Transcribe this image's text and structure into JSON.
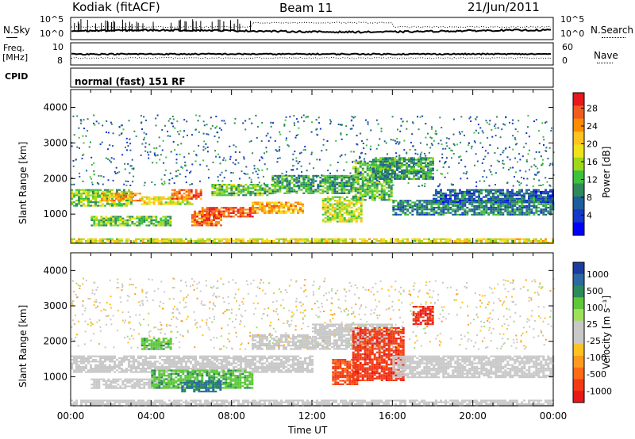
{
  "header": {
    "site": "Kodiak (fitACF)",
    "beam": "Beam 11",
    "date": "21/Jun/2011"
  },
  "strip_panels": {
    "nsky_label": "N.Sky",
    "nsearch_label": "N.Search",
    "freq_label_1": "Freq.",
    "freq_label_2": "[MHz]",
    "nave_label": "Nave",
    "cpid_label": "CPID",
    "cpid_text": "normal (fast) 151 RF",
    "noise_ticks": [
      "10^5",
      "10^0"
    ],
    "freq_ticks": [
      "10",
      "8"
    ],
    "nave_ticks": [
      "60",
      "0"
    ]
  },
  "chart_data": [
    {
      "type": "heatmap",
      "name": "Power",
      "ylabel": "Slant Range [km]",
      "yticks": [
        "4000",
        "3000",
        "2000",
        "1000"
      ],
      "ylim": [
        180,
        4500
      ],
      "xlim_hours": [
        0,
        24
      ],
      "colorbar_label": "Power [dB]",
      "colorbar_ticks": [
        "28",
        "24",
        "20",
        "16",
        "12",
        "8",
        "4"
      ],
      "colorbar_colors": [
        "#e8181c",
        "#f25a1e",
        "#ff8c00",
        "#ffc21e",
        "#f0e21a",
        "#9ed81a",
        "#3ec23a",
        "#2e8a5a",
        "#1e5e9a",
        "#1438c8",
        "#0000ff"
      ],
      "blobs": [
        {
          "t0": 0.0,
          "t1": 3.0,
          "r0": 1250,
          "r1": 1700,
          "v": 14
        },
        {
          "t0": 1.5,
          "t1": 3.5,
          "r0": 1400,
          "r1": 1600,
          "v": 22
        },
        {
          "t0": 3.5,
          "t1": 6.0,
          "r0": 1300,
          "r1": 1500,
          "v": 18
        },
        {
          "t0": 5.0,
          "t1": 6.5,
          "r0": 1450,
          "r1": 1700,
          "v": 26
        },
        {
          "t0": 6.0,
          "t1": 7.5,
          "r0": 700,
          "r1": 1100,
          "v": 26
        },
        {
          "t0": 6.5,
          "t1": 9.0,
          "r0": 950,
          "r1": 1200,
          "v": 28
        },
        {
          "t0": 9.0,
          "t1": 11.5,
          "r0": 1050,
          "r1": 1350,
          "v": 22
        },
        {
          "t0": 1.0,
          "t1": 5.0,
          "r0": 700,
          "r1": 950,
          "v": 13
        },
        {
          "t0": 7.0,
          "t1": 10.0,
          "r0": 1550,
          "r1": 1850,
          "v": 12
        },
        {
          "t0": 10.0,
          "t1": 14.0,
          "r0": 1600,
          "r1": 2100,
          "v": 10
        },
        {
          "t0": 12.5,
          "t1": 14.5,
          "r0": 800,
          "r1": 1500,
          "v": 16
        },
        {
          "t0": 14.0,
          "t1": 16.0,
          "r0": 1400,
          "r1": 2500,
          "v": 12
        },
        {
          "t0": 15.0,
          "t1": 18.0,
          "r0": 2000,
          "r1": 2600,
          "v": 10
        },
        {
          "t0": 16.0,
          "t1": 24.0,
          "r0": 1000,
          "r1": 1400,
          "v": 8
        },
        {
          "t0": 18.0,
          "t1": 24.0,
          "r0": 1350,
          "r1": 1700,
          "v": 6
        },
        {
          "t0": 0.0,
          "t1": 24.0,
          "r0": 180,
          "r1": 320,
          "v": 18
        }
      ]
    },
    {
      "type": "heatmap",
      "name": "Velocity",
      "ylabel": "Slant Range [km]",
      "yticks": [
        "4000",
        "3000",
        "2000",
        "1000"
      ],
      "ylim": [
        180,
        4500
      ],
      "xlim_hours": [
        0,
        24
      ],
      "xticks": [
        "00:00",
        "04:00",
        "08:00",
        "12:00",
        "16:00",
        "20:00",
        "00:00"
      ],
      "xlabel": "Time UT",
      "colorbar_label": "Velocity [m s⁻¹]",
      "colorbar_ticks": [
        "1000",
        "500",
        "100",
        "25",
        "-25",
        "-100",
        "-500",
        "-1000"
      ],
      "colorbar_colors": [
        "#1c3ca0",
        "#2a6aa0",
        "#2a8a5a",
        "#5ec83a",
        "#9ee05a",
        "#c8c8c8",
        "#c8c8c8",
        "#ffc21e",
        "#ff9a1e",
        "#ff6a14",
        "#f23a14",
        "#e81818"
      ],
      "blobs": [
        {
          "t0": 0.0,
          "t1": 12.0,
          "r0": 1150,
          "r1": 1600,
          "v": 0
        },
        {
          "t0": 1.0,
          "t1": 5.0,
          "r0": 700,
          "r1": 950,
          "v": 0
        },
        {
          "t0": 4.0,
          "t1": 9.0,
          "r0": 700,
          "r1": 1200,
          "v": 200
        },
        {
          "t0": 5.5,
          "t1": 7.5,
          "r0": 600,
          "r1": 900,
          "v": 600
        },
        {
          "t0": 3.5,
          "t1": 5.0,
          "r0": 1800,
          "r1": 2100,
          "v": 200
        },
        {
          "t0": 9.0,
          "t1": 12.0,
          "r0": 1800,
          "r1": 2200,
          "v": 0
        },
        {
          "t0": 12.0,
          "t1": 16.0,
          "r0": 1800,
          "r1": 2500,
          "v": 0
        },
        {
          "t0": 13.0,
          "t1": 14.2,
          "r0": 800,
          "r1": 1500,
          "v": -300
        },
        {
          "t0": 14.0,
          "t1": 16.5,
          "r0": 900,
          "r1": 2400,
          "v": -400
        },
        {
          "t0": 16.0,
          "t1": 24.0,
          "r0": 1000,
          "r1": 1600,
          "v": 0
        },
        {
          "t0": 17.0,
          "t1": 18.0,
          "r0": 2500,
          "r1": 3000,
          "v": -500
        },
        {
          "t0": 0.0,
          "t1": 24.0,
          "r0": 180,
          "r1": 350,
          "v": 30
        }
      ]
    }
  ]
}
